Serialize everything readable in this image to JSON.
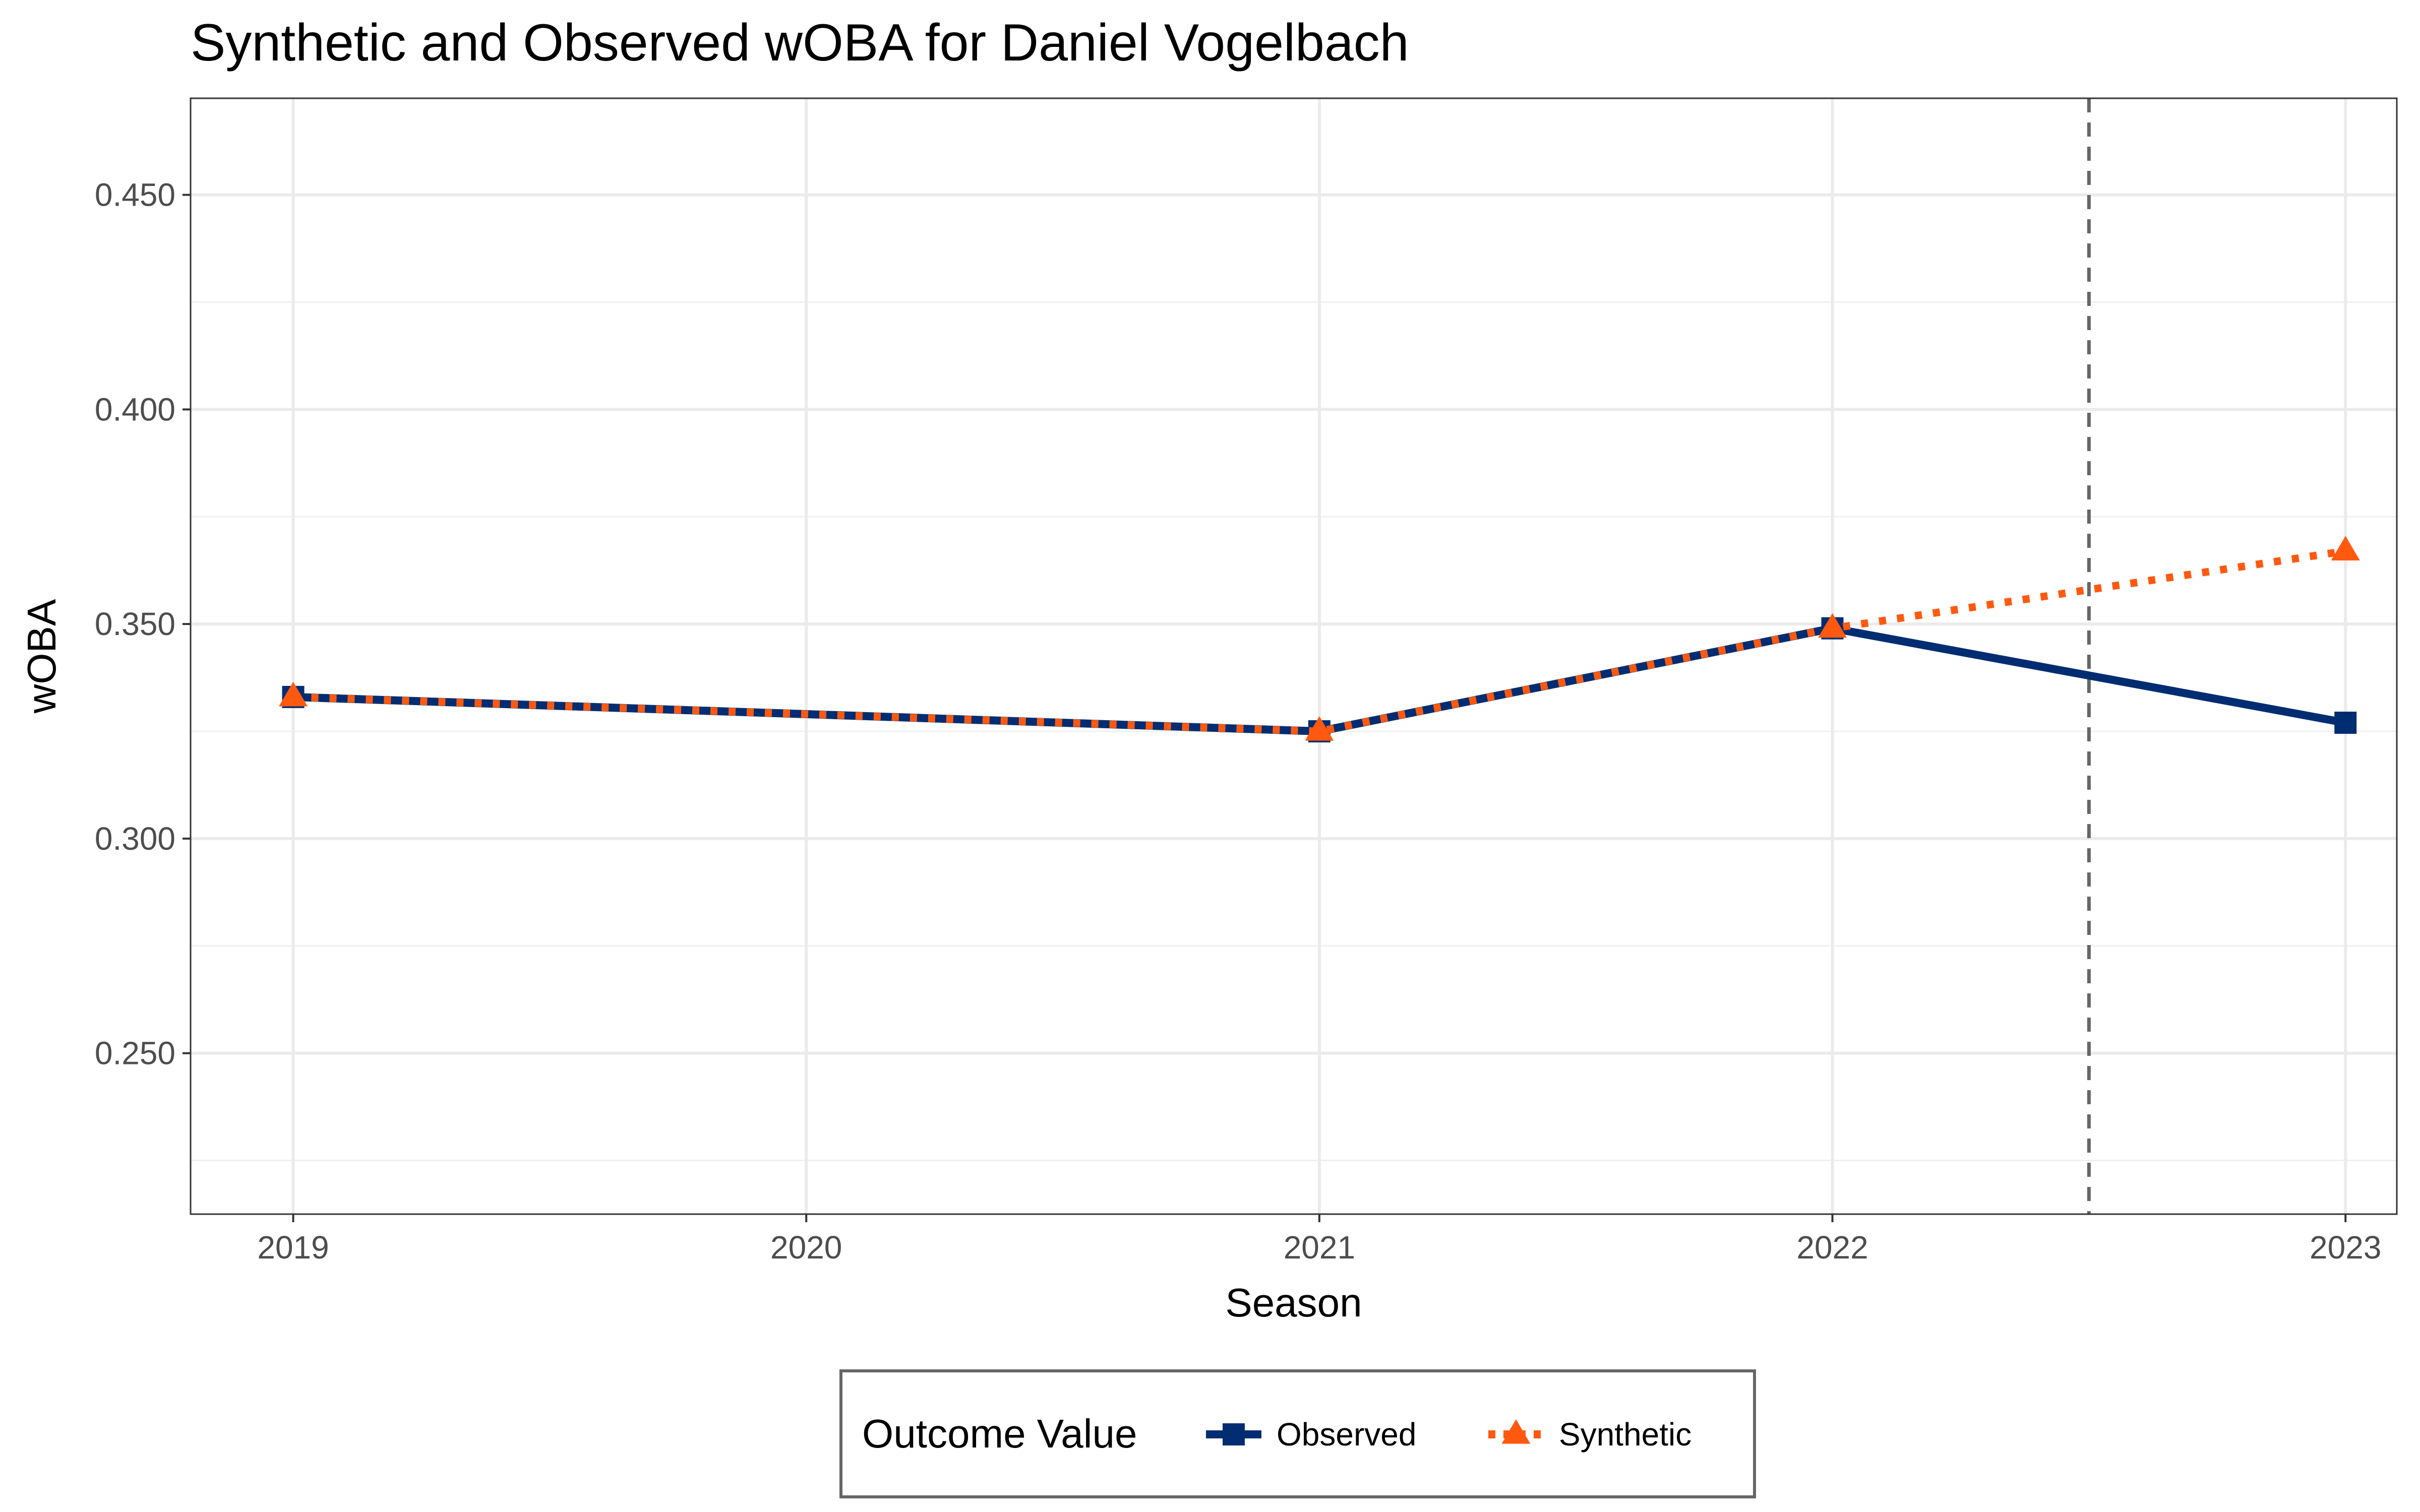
{
  "chart_data": {
    "type": "line",
    "title": "Synthetic and Observed wOBA for Daniel Vogelbach",
    "xlabel": "Season",
    "ylabel": "wOBA",
    "x": [
      2019,
      2020,
      2021,
      2022,
      2023
    ],
    "xlim": [
      2018.8,
      2023.1
    ],
    "ylim": [
      0.2125,
      0.4725
    ],
    "y_ticks": [
      0.25,
      0.3,
      0.35,
      0.4,
      0.45
    ],
    "y_tick_labels": [
      "0.250",
      "0.300",
      "0.350",
      "0.400",
      "0.450"
    ],
    "x_tick_labels": [
      "2019",
      "2020",
      "2021",
      "2022",
      "2023"
    ],
    "grid": true,
    "intervention_line": {
      "x": 2022.5,
      "style": "dashed",
      "color": "#666666"
    },
    "series": [
      {
        "name": "Observed",
        "color": "#002D72",
        "line_style": "solid",
        "marker": "square",
        "points": [
          {
            "x": 2019,
            "y": 0.333
          },
          {
            "x": 2021,
            "y": 0.325
          },
          {
            "x": 2022,
            "y": 0.349
          },
          {
            "x": 2023,
            "y": 0.327
          }
        ]
      },
      {
        "name": "Synthetic",
        "color": "#FF5910",
        "line_style": "dotted",
        "marker": "triangle",
        "points": [
          {
            "x": 2019,
            "y": 0.333
          },
          {
            "x": 2021,
            "y": 0.325
          },
          {
            "x": 2022,
            "y": 0.349
          },
          {
            "x": 2023,
            "y": 0.367
          }
        ]
      }
    ],
    "legend": {
      "title": "Outcome Value",
      "position": "bottom",
      "entries": [
        "Observed",
        "Synthetic"
      ]
    }
  }
}
